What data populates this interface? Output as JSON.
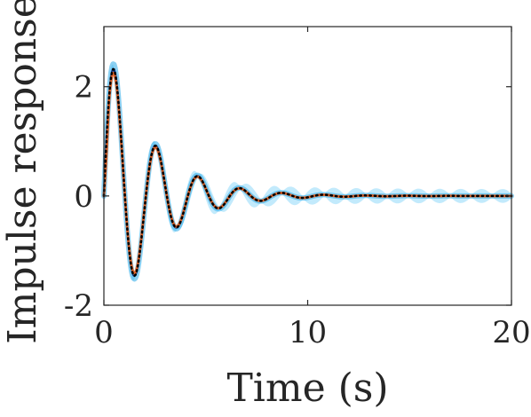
{
  "chart_data": {
    "type": "line",
    "xlabel": "Time (s)",
    "ylabel": "Impulse response",
    "xlim": [
      0,
      20
    ],
    "ylim": [
      -2,
      3.1
    ],
    "xticks": [
      0,
      10,
      20
    ],
    "yticks": [
      -2,
      0,
      2
    ],
    "grid": false,
    "box": true,
    "model": {
      "amplitude": 2.9,
      "damping": 0.45,
      "omega": 3.05
    },
    "band": {
      "color": "#4fc3f7",
      "spread": 0.25
    },
    "series": [
      {
        "role": "samples",
        "color": "#29a9e8",
        "style": "solid",
        "width": 6
      },
      {
        "role": "mean",
        "color": "#0d3b8c",
        "style": "solid",
        "width": 2.5
      },
      {
        "role": "estimate",
        "color": "#e0642a",
        "style": "solid",
        "width": 3
      },
      {
        "role": "true",
        "color": "#000000",
        "style": "dotted",
        "width": 2.5
      }
    ],
    "x": [
      0,
      0.2,
      0.4,
      0.6,
      0.8,
      1.0,
      1.2,
      1.4,
      1.6,
      1.8,
      2.0,
      2.2,
      2.4,
      2.6,
      2.8,
      3.0,
      3.2,
      3.4,
      3.6,
      3.8,
      4.0,
      4.2,
      4.4,
      4.6,
      4.8,
      5.0,
      5.2,
      5.4,
      5.6,
      5.8,
      6.0,
      6.5,
      7.0,
      7.5,
      8.0,
      8.5,
      9.0,
      9.5,
      10.0,
      10.5,
      11.0,
      12.0,
      13.0,
      14.0,
      15.0,
      16.0,
      17.0,
      18.0,
      19.0,
      20.0
    ],
    "y": [
      0,
      1.69,
      2.58,
      2.52,
      1.59,
      0.14,
      -1.11,
      -1.69,
      -1.43,
      -0.65,
      0.33,
      0.95,
      1.03,
      0.67,
      0.04,
      -0.48,
      -0.67,
      -0.53,
      -0.16,
      0.21,
      0.38,
      0.33,
      0.14,
      -0.07,
      -0.2,
      -0.21,
      -0.11,
      0.03,
      0.09,
      0.1,
      0.05,
      -0.05,
      0.02,
      0.02,
      -0.03,
      0.01,
      0.01,
      -0.01,
      0.0,
      0.0,
      0.0,
      0.0,
      0.0,
      0.0,
      0.0,
      0.0,
      0.0,
      0.0,
      0.0,
      0.0
    ]
  }
}
